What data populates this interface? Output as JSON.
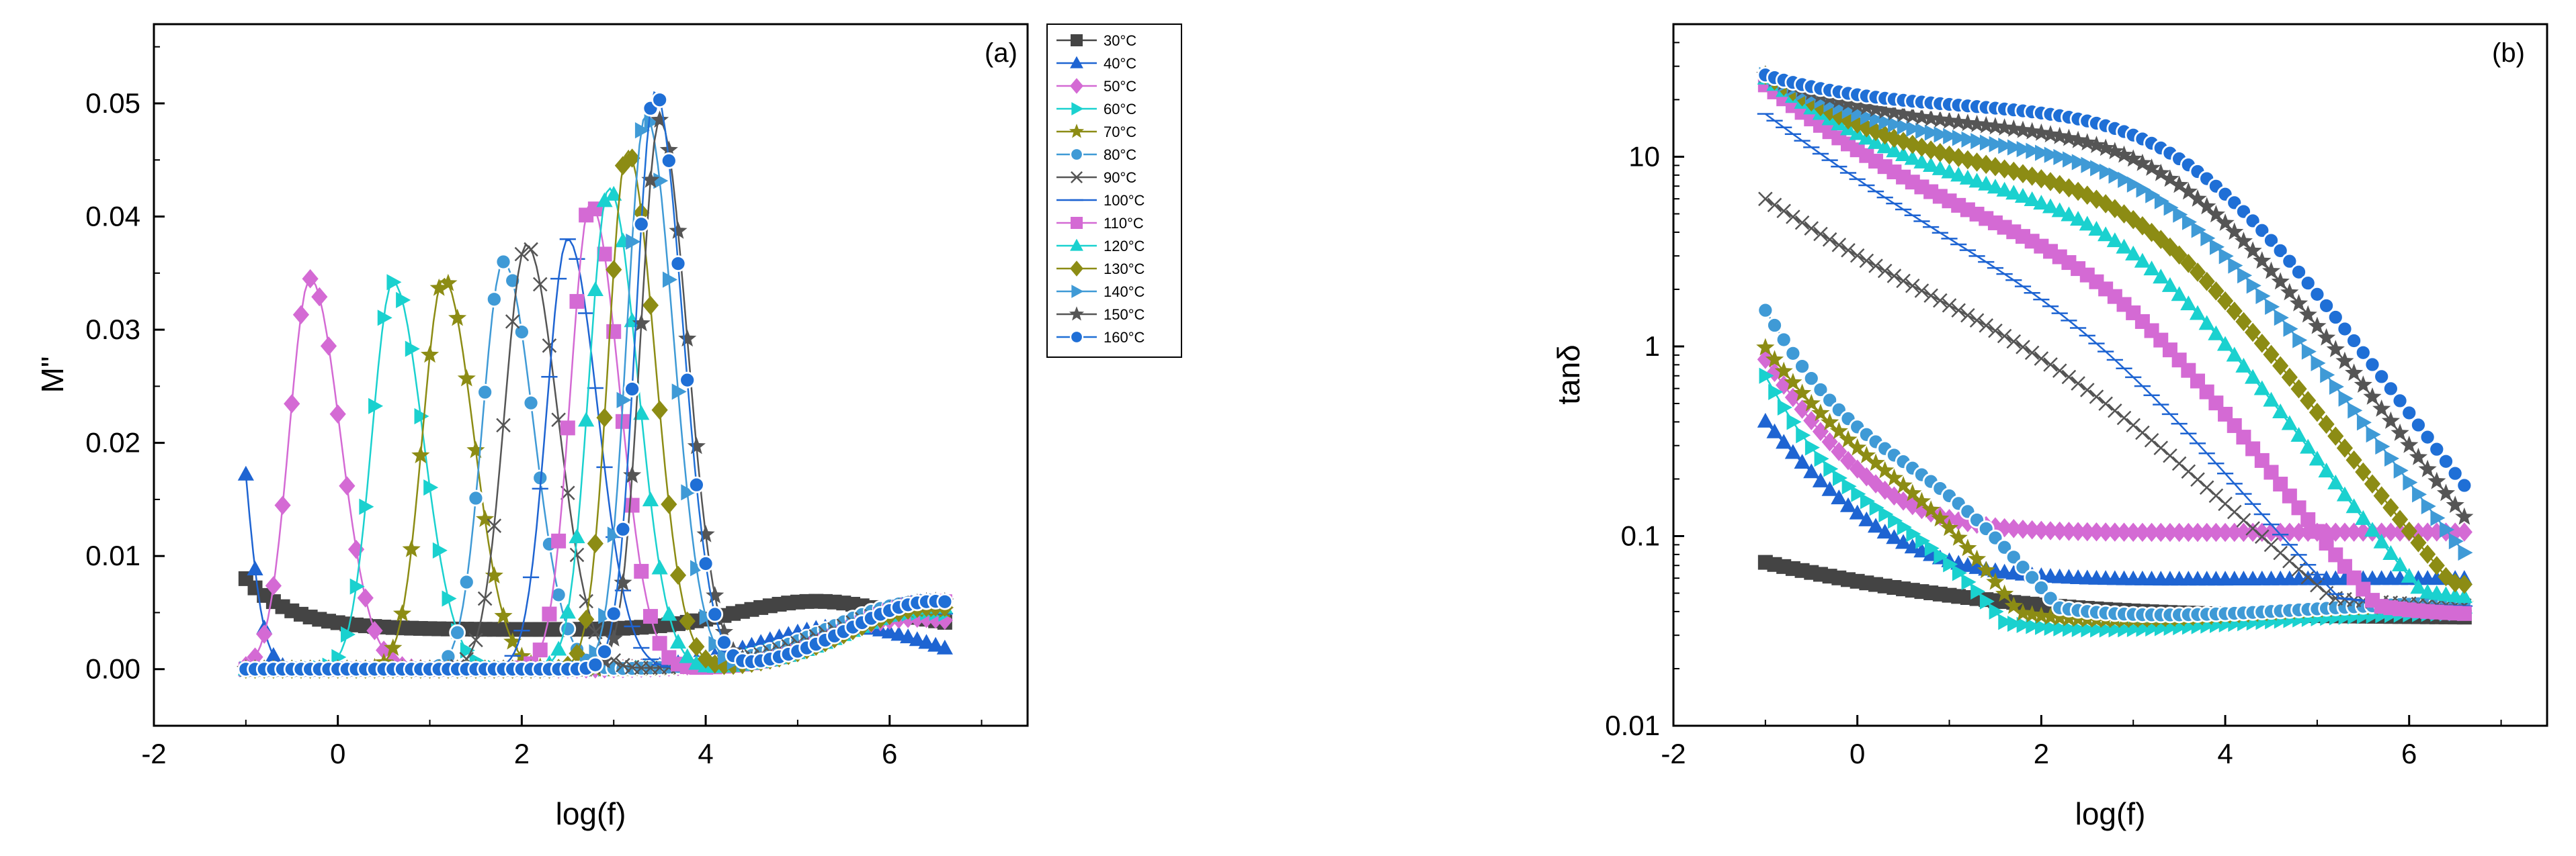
{
  "chart_data": [
    {
      "type": "line",
      "panel_label": "(a)",
      "xlabel": "log(f)",
      "ylabel": "M\"",
      "xlim": [
        -2,
        7.5
      ],
      "ylim": [
        -0.005,
        0.057
      ],
      "xticks": [
        -2,
        0,
        2,
        4,
        6
      ],
      "xtick_labels": [
        "-2",
        "0",
        "2",
        "4",
        "6"
      ],
      "yticks": [
        0,
        0.01,
        0.02,
        0.03,
        0.04,
        0.05
      ],
      "ytick_labels": [
        "0.00",
        "0.01",
        "0.02",
        "0.03",
        "0.04",
        "0.05"
      ],
      "legend": "outside-right",
      "x_range_data": [
        -1,
        6.6
      ],
      "series": [
        {
          "name": "30°C",
          "color": "#444444",
          "marker": "square",
          "kind": "descend",
          "params": {
            "s": 0.008,
            "e": 0.0045,
            "b": 0.0035,
            "r": 0.5,
            "p": 5.2,
            "pw": 1.2,
            "ph": 0.0025
          }
        },
        {
          "name": "40°C",
          "color": "#1e64d2",
          "marker": "triangle-up",
          "kind": "peak",
          "params": {
            "pk": -1.25,
            "h": 0.0345,
            "w": 0.3,
            "hf": 0.0038,
            "fp": 5.5,
            "fw": 1.3
          }
        },
        {
          "name": "50°C",
          "color": "#d46ad4",
          "marker": "diamond",
          "kind": "peak",
          "params": {
            "pk": -0.3,
            "h": 0.0345,
            "w": 0.46,
            "hf": 0.0045,
            "fp": 6.3,
            "fw": 1.5
          }
        },
        {
          "name": "60°C",
          "color": "#1ad1cf",
          "marker": "triangle-right",
          "kind": "peak",
          "params": {
            "pk": 0.6,
            "h": 0.0342,
            "w": 0.46,
            "hf": 0.005,
            "fp": 6.4,
            "fw": 1.6
          }
        },
        {
          "name": "70°C",
          "color": "#8c8c14",
          "marker": "star",
          "kind": "peak",
          "params": {
            "pk": 1.15,
            "h": 0.0345,
            "w": 0.46,
            "hf": 0.0053,
            "fp": 6.4,
            "fw": 1.5
          }
        },
        {
          "name": "80°C",
          "color": "#3f9ad6",
          "marker": "circle",
          "kind": "peak",
          "params": {
            "pk": 1.8,
            "h": 0.036,
            "w": 0.46,
            "hf": 0.006,
            "fp": 6.4,
            "fw": 1.5
          }
        },
        {
          "name": "90°C",
          "color": "#555555",
          "marker": "x",
          "kind": "peak",
          "params": {
            "pk": 2.05,
            "h": 0.0375,
            "w": 0.48,
            "hf": 0.0055,
            "fp": 6.4,
            "fw": 1.5
          }
        },
        {
          "name": "100°C",
          "color": "#1e64d2",
          "marker": "line",
          "kind": "peak",
          "params": {
            "pk": 2.5,
            "h": 0.038,
            "w": 0.46,
            "hf": 0.005,
            "fp": 6.4,
            "fw": 1.4
          }
        },
        {
          "name": "110°C",
          "color": "#d46ad4",
          "marker": "square",
          "kind": "peak",
          "params": {
            "pk": 2.75,
            "h": 0.0412,
            "w": 0.44,
            "hf": 0.006,
            "fp": 6.5,
            "fw": 1.3
          }
        },
        {
          "name": "120°C",
          "color": "#1ad1cf",
          "marker": "triangle-up",
          "kind": "peak",
          "params": {
            "pk": 2.95,
            "h": 0.0425,
            "w": 0.44,
            "hf": 0.0055,
            "fp": 6.5,
            "fw": 1.3
          }
        },
        {
          "name": "130°C",
          "color": "#8c8c14",
          "marker": "diamond",
          "kind": "peak",
          "params": {
            "pk": 3.15,
            "h": 0.0458,
            "w": 0.42,
            "hf": 0.0055,
            "fp": 6.5,
            "fw": 1.3
          }
        },
        {
          "name": "140°C",
          "color": "#3f9ad6",
          "marker": "triangle-right",
          "kind": "peak",
          "params": {
            "pk": 3.35,
            "h": 0.049,
            "w": 0.42,
            "hf": 0.006,
            "fp": 6.5,
            "fw": 1.3
          }
        },
        {
          "name": "150°C",
          "color": "#555555",
          "marker": "star",
          "kind": "peak",
          "params": {
            "pk": 3.5,
            "h": 0.0485,
            "w": 0.42,
            "hf": 0.006,
            "fp": 6.5,
            "fw": 1.3
          }
        },
        {
          "name": "160°C",
          "color": "#1f6fd6",
          "marker": "circle",
          "kind": "peak",
          "params": {
            "pk": 3.45,
            "h": 0.051,
            "w": 0.42,
            "hf": 0.006,
            "fp": 6.5,
            "fw": 1.3
          }
        }
      ]
    },
    {
      "type": "line",
      "panel_label": "(b)",
      "xlabel": "log(f)",
      "ylabel": "tanδ",
      "yscale": "log",
      "xlim": [
        -2,
        7.5
      ],
      "ylim": [
        0.01,
        50
      ],
      "xticks": [
        -2,
        0,
        2,
        4,
        6
      ],
      "xtick_labels": [
        "-2",
        "0",
        "2",
        "4",
        "6"
      ],
      "yticks": [
        0.01,
        0.1,
        1,
        10
      ],
      "ytick_labels": [
        "0.01",
        "0.1",
        "1",
        "10"
      ],
      "x_range_data": [
        -1,
        6.6
      ],
      "series": [
        {
          "name": "30°C",
          "color": "#444444",
          "marker": "square",
          "kind": "tan",
          "params": {
            "a": 0.07,
            "c": 0.032,
            "k": 2.0,
            "t": 0.0,
            "s": 0.0,
            "lo": 0.018,
            "lc": 4.0,
            "lw": 0.9,
            "hi": 0.031
          }
        },
        {
          "name": "40°C",
          "color": "#1e64d2",
          "marker": "triangle-up",
          "kind": "tan",
          "params": {
            "a": 0.4,
            "c": 0.055,
            "k": 0.65,
            "t": 0.0,
            "s": 0.0,
            "lo": 0.02,
            "lc": 3.6,
            "lw": 1.0,
            "hi": 0.032
          }
        },
        {
          "name": "50°C",
          "color": "#d46ad4",
          "marker": "diamond",
          "kind": "tan",
          "params": {
            "a": 0.85,
            "c": 0.1,
            "k": 0.55,
            "t": 0.0,
            "s": 0.0,
            "lo": 0.026,
            "lc": 4.0,
            "lw": 1.0,
            "hi": 0.034
          }
        },
        {
          "name": "60°C",
          "color": "#1ad1cf",
          "marker": "triangle-right",
          "kind": "tan",
          "params": {
            "a": 0.72,
            "c": 0.15,
            "k": 0.4,
            "t": 0.85,
            "s": 0.55,
            "lo": 0.03,
            "lc": 4.3,
            "lw": 0.9,
            "hi": 0.04
          }
        },
        {
          "name": "70°C",
          "color": "#8c8c14",
          "marker": "star",
          "kind": "tan",
          "params": {
            "a": 1.0,
            "c": 0.2,
            "k": 0.55,
            "t": 0.95,
            "s": 0.5,
            "lo": 0.034,
            "lc": 4.6,
            "lw": 0.9,
            "hi": 0.045
          }
        },
        {
          "name": "80°C",
          "color": "#3f9ad6",
          "marker": "circle",
          "kind": "tan",
          "params": {
            "a": 1.6,
            "c": 0.3,
            "k": 0.45,
            "t": 1.0,
            "s": 0.6,
            "lo": 0.036,
            "lc": 4.9,
            "lw": 0.9,
            "hi": 0.046
          }
        },
        {
          "name": "90°C",
          "color": "#555555",
          "marker": "x",
          "kind": "tan",
          "params": {
            "a": 6.2,
            "c": 1.4,
            "k": 1.1,
            "t": 2.0,
            "s": 0.9,
            "lo": 0.04,
            "lc": 5.0,
            "lw": 0.8,
            "hi": 0.042
          }
        },
        {
          "name": "100°C",
          "color": "#1e64d2",
          "marker": "line",
          "kind": "tan",
          "params": {
            "a": 17.0,
            "c": 1.8,
            "k": 1.1,
            "t": 2.4,
            "s": 0.75,
            "lo": 0.04,
            "lc": 5.0,
            "lw": 0.8,
            "hi": 0.042
          }
        },
        {
          "name": "110°C",
          "color": "#d46ad4",
          "marker": "square",
          "kind": "tan",
          "params": {
            "a": 24.0,
            "c": 3.5,
            "k": 1.0,
            "t": 2.7,
            "s": 0.65,
            "lo": 0.036,
            "lc": 5.0,
            "lw": 0.8,
            "hi": 0.038
          }
        },
        {
          "name": "120°C",
          "color": "#1ad1cf",
          "marker": "triangle-up",
          "kind": "tan",
          "params": {
            "a": 26.0,
            "c": 6.0,
            "k": 1.0,
            "t": 2.95,
            "s": 0.65,
            "lo": 0.042,
            "lc": 5.0,
            "lw": 0.8,
            "hi": 0.045
          }
        },
        {
          "name": "130°C",
          "color": "#8c8c14",
          "marker": "diamond",
          "kind": "tan",
          "params": {
            "a": 27.0,
            "c": 8.0,
            "k": 1.0,
            "t": 3.15,
            "s": 0.65,
            "lo": 0.048,
            "lc": 5.0,
            "lw": 0.8,
            "hi": 0.05
          }
        },
        {
          "name": "140°C",
          "color": "#3f9ad6",
          "marker": "triangle-right",
          "kind": "tan",
          "params": {
            "a": 27.0,
            "c": 11.0,
            "k": 1.0,
            "t": 3.35,
            "s": 0.65,
            "lo": 0.05,
            "lc": 5.0,
            "lw": 0.8,
            "hi": 0.055
          }
        },
        {
          "name": "150°C",
          "color": "#555555",
          "marker": "star",
          "kind": "tan",
          "params": {
            "a": 27.0,
            "c": 14.0,
            "k": 1.0,
            "t": 3.5,
            "s": 0.65,
            "lo": 0.052,
            "lc": 5.0,
            "lw": 0.8,
            "hi": 0.055
          }
        },
        {
          "name": "160°C",
          "color": "#1f6fd6",
          "marker": "circle",
          "kind": "tan",
          "params": {
            "a": 27.0,
            "c": 18.0,
            "k": 1.0,
            "t": 3.6,
            "s": 0.65,
            "lo": 0.055,
            "lc": 5.0,
            "lw": 0.8,
            "hi": 0.057
          }
        }
      ]
    }
  ]
}
